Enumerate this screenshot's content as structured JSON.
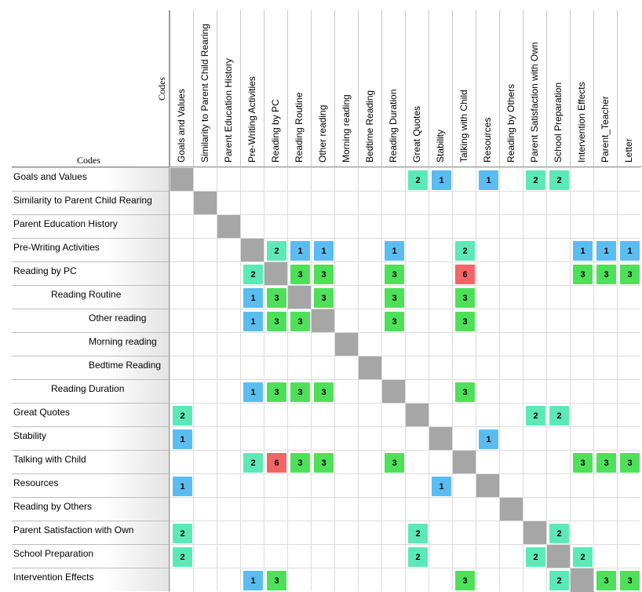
{
  "axis_title_columns": "Codes",
  "axis_title_rows": "Codes",
  "columns": [
    "Goals and Values",
    "Similarity to Parent Child Rearing",
    "Parent Education History",
    "Pre-Writing Activities",
    "Reading by PC",
    "Reading Routine",
    "Other reading",
    "Morning reading",
    "Bedtime Reading",
    "Reading Duration",
    "Great Quotes",
    "Stability",
    "Talking with Child",
    "Resources",
    "Reading by Others",
    "Parent Satisfaction with Own",
    "School Preparation",
    "Intervention Effects",
    "Parent_Teacher",
    "Letter"
  ],
  "rows": [
    {
      "label": "Goals and Values",
      "indent": 0,
      "cells": {
        "10": "2",
        "11": "1",
        "13": "1",
        "15": "2",
        "16": "2"
      }
    },
    {
      "label": "Similarity to Parent Child Rearing",
      "indent": 0,
      "cells": {}
    },
    {
      "label": "Parent Education History",
      "indent": 0,
      "cells": {}
    },
    {
      "label": "Pre-Writing Activities",
      "indent": 0,
      "cells": {
        "4": "2",
        "5": "1",
        "6": "1",
        "9": "1",
        "12": "2",
        "17": "1",
        "18": "1",
        "19": "1"
      }
    },
    {
      "label": "Reading by PC",
      "indent": 0,
      "cells": {
        "3": "2",
        "5": "3",
        "6": "3",
        "9": "3",
        "12": "6",
        "17": "3",
        "18": "3",
        "19": "3"
      }
    },
    {
      "label": "Reading Routine",
      "indent": 1,
      "cells": {
        "3": "1",
        "4": "3",
        "6": "3",
        "9": "3",
        "12": "3"
      }
    },
    {
      "label": "Other reading",
      "indent": 2,
      "cells": {
        "3": "1",
        "4": "3",
        "5": "3",
        "9": "3",
        "12": "3"
      }
    },
    {
      "label": "Morning reading",
      "indent": 2,
      "cells": {}
    },
    {
      "label": "Bedtime Reading",
      "indent": 2,
      "cells": {}
    },
    {
      "label": "Reading Duration",
      "indent": 1,
      "cells": {
        "3": "1",
        "4": "3",
        "5": "3",
        "6": "3",
        "12": "3"
      }
    },
    {
      "label": "Great Quotes",
      "indent": 0,
      "cells": {
        "0": "2",
        "15": "2",
        "16": "2"
      }
    },
    {
      "label": "Stability",
      "indent": 0,
      "cells": {
        "0": "1",
        "13": "1"
      }
    },
    {
      "label": "Talking with Child",
      "indent": 0,
      "cells": {
        "3": "2",
        "4": "6",
        "5": "3",
        "6": "3",
        "9": "3",
        "17": "3",
        "18": "3",
        "19": "3"
      }
    },
    {
      "label": "Resources",
      "indent": 0,
      "cells": {
        "0": "1",
        "11": "1"
      }
    },
    {
      "label": "Reading by Others",
      "indent": 0,
      "cells": {}
    },
    {
      "label": "Parent Satisfaction with Own",
      "indent": 0,
      "cells": {
        "0": "2",
        "10": "2",
        "16": "2"
      }
    },
    {
      "label": "School Preparation",
      "indent": 0,
      "cells": {
        "0": "2",
        "10": "2",
        "15": "2",
        "17": "2"
      }
    },
    {
      "label": "Intervention Effects",
      "indent": 0,
      "cells": {
        "3": "1",
        "4": "3",
        "12": "3",
        "16": "2",
        "18": "3",
        "19": "3"
      }
    }
  ],
  "colors": {
    "1": "#5bbcf0",
    "2": "#5de8b8",
    "3": "#4fe05a",
    "6": "#f06666",
    "diagonal": "#a6a6a6"
  }
}
